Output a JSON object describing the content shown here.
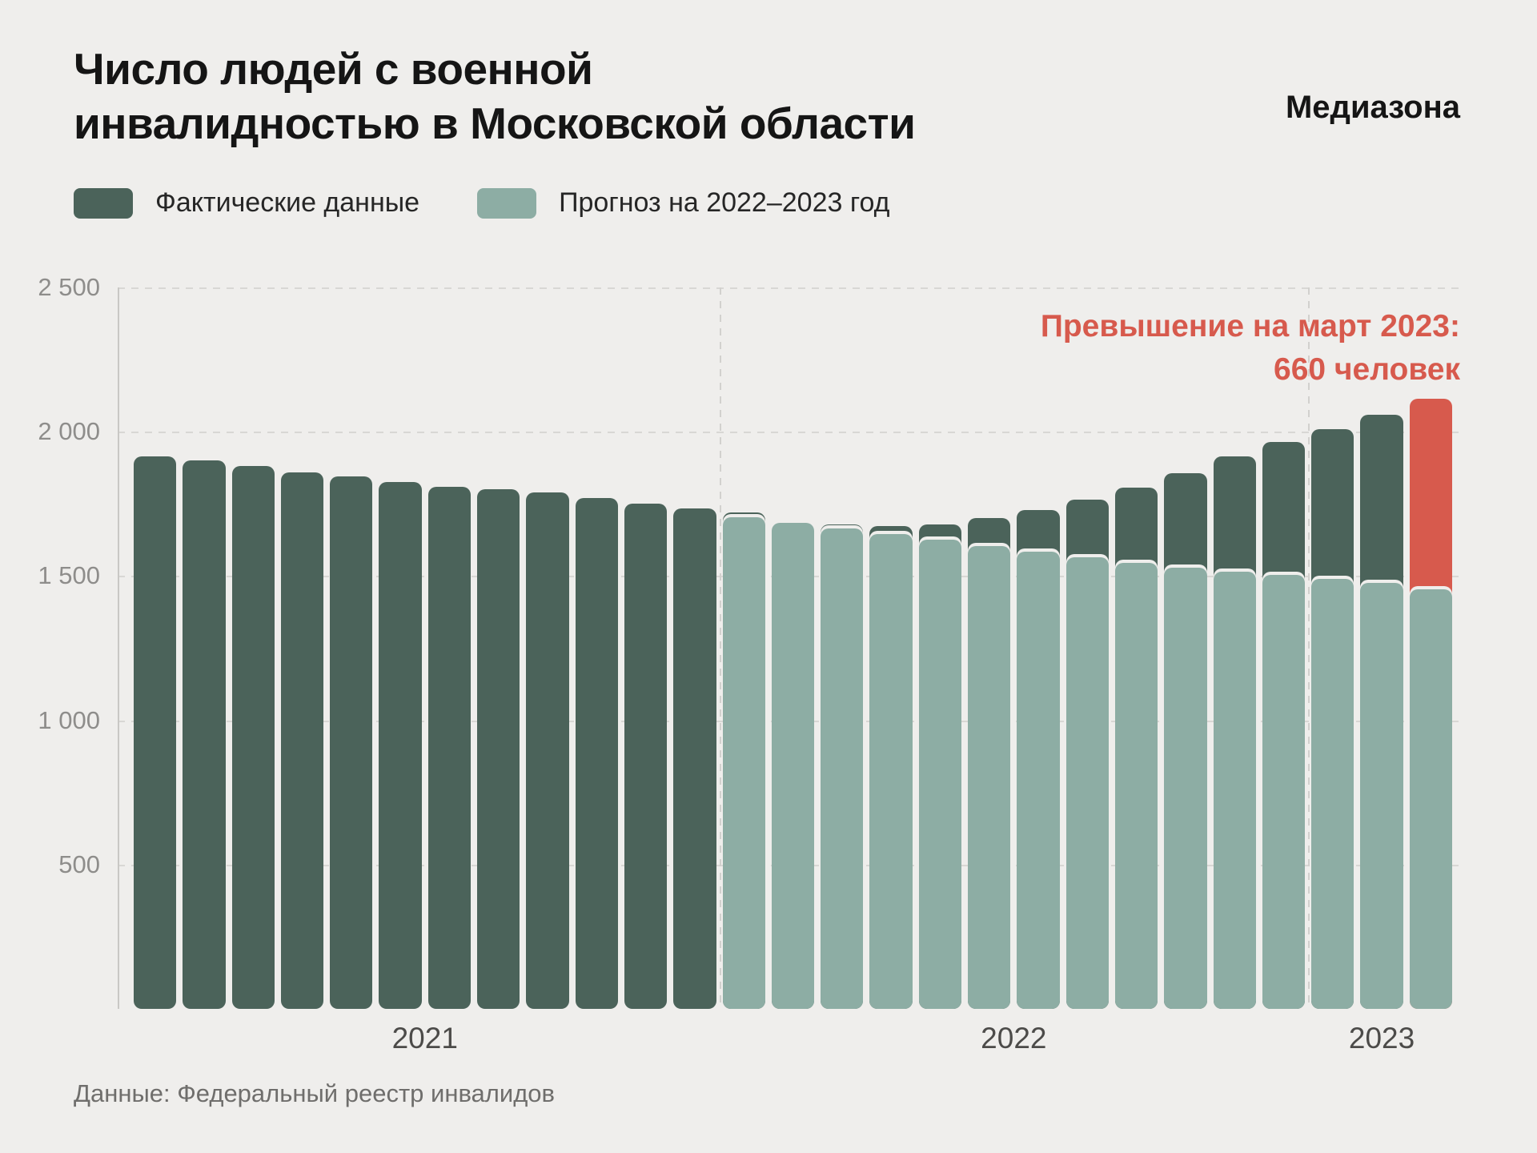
{
  "header": {
    "brand": "Медиазона"
  },
  "colors": {
    "actual": "#4b635a",
    "forecast": "#8dada4",
    "excess": "#d75a4d",
    "background": "#efeeec"
  },
  "footer": {
    "source": "Данные: Федеральный реестр инвалидов"
  },
  "chart_data": {
    "type": "bar",
    "title": "Число людей с военной\nинвалидностью в Московской области",
    "xlabel": "",
    "ylabel": "",
    "ylim": [
      0,
      2500
    ],
    "grid": "dashed-horizontal",
    "legend_position": "top-left",
    "legend": [
      {
        "key": "actual",
        "label": "Фактические данные"
      },
      {
        "key": "forecast",
        "label": "Прогноз на 2022–2023 год"
      }
    ],
    "annotation": {
      "line1": "Превышение на март 2023:",
      "line2": "660 человек",
      "excess_value": 660
    },
    "yticks": [
      {
        "value": 500,
        "label": "500"
      },
      {
        "value": 1000,
        "label": "1 000"
      },
      {
        "value": 1500,
        "label": "1 500"
      },
      {
        "value": 2000,
        "label": "2 000"
      },
      {
        "value": 2500,
        "label": "2 500"
      }
    ],
    "years": [
      {
        "label": "2021",
        "months": 12
      },
      {
        "label": "2022",
        "months": 12
      },
      {
        "label": "2023",
        "months": 3
      }
    ],
    "bars": [
      {
        "month": "2021-01",
        "actual": 1915
      },
      {
        "month": "2021-02",
        "actual": 1900
      },
      {
        "month": "2021-03",
        "actual": 1880
      },
      {
        "month": "2021-04",
        "actual": 1860
      },
      {
        "month": "2021-05",
        "actual": 1845
      },
      {
        "month": "2021-06",
        "actual": 1825
      },
      {
        "month": "2021-07",
        "actual": 1810
      },
      {
        "month": "2021-08",
        "actual": 1800
      },
      {
        "month": "2021-09",
        "actual": 1790
      },
      {
        "month": "2021-10",
        "actual": 1770
      },
      {
        "month": "2021-11",
        "actual": 1750
      },
      {
        "month": "2021-12",
        "actual": 1735
      },
      {
        "month": "2022-01",
        "actual": 1720,
        "forecast": 1705
      },
      {
        "month": "2022-02",
        "actual": 1690,
        "forecast": 1685
      },
      {
        "month": "2022-03",
        "actual": 1680,
        "forecast": 1665
      },
      {
        "month": "2022-04",
        "actual": 1672,
        "forecast": 1645
      },
      {
        "month": "2022-05",
        "actual": 1680,
        "forecast": 1625
      },
      {
        "month": "2022-06",
        "actual": 1700,
        "forecast": 1605
      },
      {
        "month": "2022-07",
        "actual": 1730,
        "forecast": 1585
      },
      {
        "month": "2022-08",
        "actual": 1765,
        "forecast": 1565
      },
      {
        "month": "2022-09",
        "actual": 1805,
        "forecast": 1545
      },
      {
        "month": "2022-10",
        "actual": 1855,
        "forecast": 1530
      },
      {
        "month": "2022-11",
        "actual": 1915,
        "forecast": 1515
      },
      {
        "month": "2022-12",
        "actual": 1965,
        "forecast": 1505
      },
      {
        "month": "2023-01",
        "actual": 2010,
        "forecast": 1490
      },
      {
        "month": "2023-02",
        "actual": 2060,
        "forecast": 1475
      },
      {
        "month": "2023-03",
        "actual": 2115,
        "forecast": 1455,
        "excess": true
      }
    ],
    "source": "Данные: Федеральный реестр инвалидов"
  }
}
